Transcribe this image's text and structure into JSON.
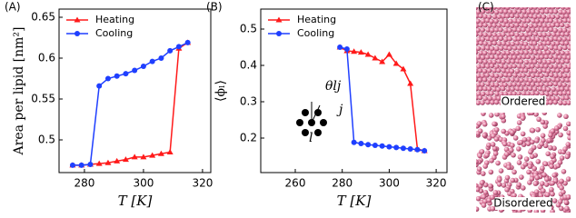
{
  "chart_data": [
    {
      "type": "line",
      "label": "(A)",
      "ylabel": "Area per lipid [nm²]",
      "xlabel": "T [K]",
      "xlim": [
        271.4,
        322.8
      ],
      "xticks": [
        280,
        300,
        320
      ],
      "ylim": [
        0.46,
        0.66
      ],
      "yticks": [
        0.5,
        0.55,
        0.6,
        0.65
      ],
      "legend": "upper left",
      "series": [
        {
          "name": "Heating",
          "color": "#ff1a1a",
          "marker": "triangle",
          "x": [
            276,
            279,
            282,
            285,
            288,
            291,
            294,
            297,
            300,
            303,
            306,
            309,
            312,
            315
          ],
          "values": [
            0.469,
            0.469,
            0.47,
            0.471,
            0.472,
            0.474,
            0.476,
            0.479,
            0.479,
            0.481,
            0.483,
            0.485,
            0.612,
            0.619
          ]
        },
        {
          "name": "Cooling",
          "color": "#1f3fff",
          "marker": "circle",
          "x": [
            315,
            312,
            309,
            306,
            303,
            300,
            297,
            294,
            291,
            288,
            285,
            282,
            279,
            276
          ],
          "values": [
            0.619,
            0.614,
            0.609,
            0.6,
            0.596,
            0.59,
            0.585,
            0.581,
            0.578,
            0.575,
            0.566,
            0.47,
            0.469,
            0.469
          ]
        }
      ]
    },
    {
      "type": "line",
      "label": "(B)",
      "ylabel": "⟨ϕₗ⟩",
      "xlabel": "T [K]",
      "xlim": [
        245.3,
        324.6
      ],
      "xticks": [
        260,
        280,
        300,
        320
      ],
      "ylim": [
        0.105,
        0.555
      ],
      "yticks": [
        0.2,
        0.3,
        0.4,
        0.5
      ],
      "legend": "upper left",
      "annotations": [
        "θlj",
        "j",
        "l"
      ],
      "series": [
        {
          "name": "Heating",
          "color": "#ff1a1a",
          "marker": "triangle",
          "x": [
            279,
            282,
            285,
            288,
            291,
            294,
            297,
            300,
            303,
            306,
            309,
            312,
            315
          ],
          "values": [
            0.45,
            0.44,
            0.438,
            0.436,
            0.43,
            0.42,
            0.41,
            0.43,
            0.405,
            0.39,
            0.35,
            0.17,
            0.165
          ]
        },
        {
          "name": "Cooling",
          "color": "#1f3fff",
          "marker": "circle",
          "x": [
            315,
            312,
            309,
            306,
            303,
            300,
            297,
            294,
            291,
            288,
            285,
            282,
            279
          ],
          "values": [
            0.165,
            0.168,
            0.17,
            0.172,
            0.174,
            0.176,
            0.178,
            0.18,
            0.182,
            0.185,
            0.188,
            0.445,
            0.45
          ]
        }
      ]
    }
  ],
  "panel_c": {
    "label": "(C)",
    "images": [
      "Ordered",
      "Disordered"
    ]
  }
}
